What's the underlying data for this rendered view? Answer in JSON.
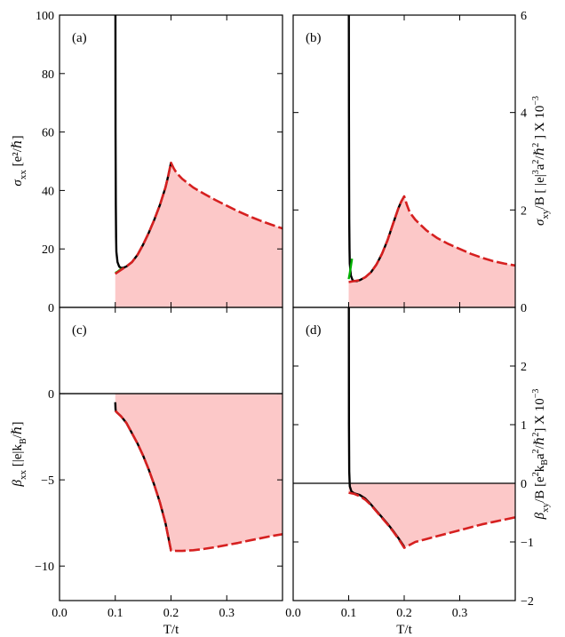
{
  "chart_data": [
    {
      "panel": "(a)",
      "type": "line",
      "ylabel": "σ_xx [e²/ℏ]",
      "ylabel_parts": {
        "sym": "σ",
        "sub": "xx",
        "unit": "[e²/ℏ]"
      },
      "xlim": [
        0.0,
        0.4
      ],
      "ylim": [
        0,
        100
      ],
      "yticks": [
        0,
        20,
        40,
        60,
        80,
        100
      ],
      "ytick_labels": [
        "0",
        "20",
        "40",
        "60",
        "80",
        "100"
      ],
      "series": [
        {
          "color": "#000000",
          "dash": false,
          "x": [
            0.1003,
            0.1005,
            0.101,
            0.1015,
            0.102,
            0.104,
            0.107,
            0.11,
            0.115,
            0.12,
            0.13,
            0.14,
            0.15,
            0.16,
            0.17,
            0.18,
            0.19,
            0.195,
            0.2
          ],
          "y": [
            100,
            60,
            35,
            24,
            19,
            15.5,
            14,
            13.5,
            13.6,
            14,
            15.5,
            18,
            21.5,
            25.5,
            30,
            35,
            41,
            45,
            49.5
          ]
        },
        {
          "color": "#00b000",
          "dash": false,
          "x": [
            0.1,
            0.104,
            0.108,
            0.112
          ],
          "y": [
            11.8,
            12.2,
            12.8,
            13.3
          ]
        },
        {
          "color": "#d62020",
          "dash": true,
          "x": [
            0.1,
            0.11,
            0.12,
            0.13,
            0.14,
            0.15,
            0.16,
            0.17,
            0.18,
            0.19,
            0.195,
            0.2,
            0.205,
            0.21,
            0.22,
            0.24,
            0.26,
            0.28,
            0.3,
            0.32,
            0.34,
            0.36,
            0.38,
            0.4
          ],
          "y": [
            11.5,
            12.8,
            14,
            15.5,
            18,
            21.5,
            25.5,
            30,
            35,
            41,
            45,
            49.5,
            47.5,
            46,
            44,
            41,
            38.8,
            36.7,
            34.8,
            32.9,
            31.2,
            29.7,
            28.3,
            27
          ]
        }
      ],
      "fill": {
        "color": "#fcc8c8",
        "from_x": 0.1,
        "follows": "red dashed curve"
      }
    },
    {
      "panel": "(b)",
      "type": "line",
      "ylabel": "σ_xy/B [ |e|³a²/ℏ² ]  X 10⁻³",
      "ylabel_parts": {
        "sym": "σ",
        "sub": "xy",
        "unit": "/B [ |e|",
        "sup1": "3",
        "mid1": "a",
        "sup2": "2",
        "mid2": "/ℏ",
        "sup3": "2",
        "tail": " ]  X 10",
        "sup4": "−3"
      },
      "ylabel_side": "right",
      "xlim": [
        0.0,
        0.4
      ],
      "ylim": [
        0,
        6
      ],
      "yticks": [
        0,
        2,
        4,
        6
      ],
      "ytick_labels": [
        "0",
        "2",
        "4",
        "6"
      ],
      "series": [
        {
          "color": "#000000",
          "dash": false,
          "x": [
            0.1003,
            0.1005,
            0.1008,
            0.101,
            0.1015,
            0.102,
            0.104,
            0.107,
            0.11,
            0.115,
            0.12,
            0.13,
            0.14,
            0.15,
            0.16,
            0.17,
            0.18,
            0.19,
            0.195,
            0.2
          ],
          "y": [
            6,
            4,
            2.5,
            1.8,
            1.2,
            0.9,
            0.65,
            0.56,
            0.54,
            0.54,
            0.56,
            0.62,
            0.72,
            0.88,
            1.1,
            1.38,
            1.72,
            2.05,
            2.18,
            2.28
          ]
        },
        {
          "color": "#00b000",
          "dash": false,
          "x": [
            0.1,
            0.102,
            0.104,
            0.106
          ],
          "y": [
            0.58,
            0.7,
            0.85,
            1.0
          ]
        },
        {
          "color": "#d62020",
          "dash": true,
          "x": [
            0.1,
            0.11,
            0.12,
            0.13,
            0.14,
            0.15,
            0.16,
            0.17,
            0.18,
            0.19,
            0.195,
            0.2,
            0.205,
            0.21,
            0.22,
            0.24,
            0.26,
            0.28,
            0.3,
            0.32,
            0.34,
            0.36,
            0.38,
            0.4
          ],
          "y": [
            0.52,
            0.54,
            0.56,
            0.62,
            0.72,
            0.88,
            1.1,
            1.38,
            1.72,
            2.05,
            2.18,
            2.28,
            2.1,
            1.95,
            1.8,
            1.58,
            1.42,
            1.3,
            1.2,
            1.1,
            1.02,
            0.95,
            0.9,
            0.86
          ]
        }
      ],
      "fill": {
        "color": "#fcc8c8",
        "from_x": 0.1,
        "follows": "red dashed curve"
      }
    },
    {
      "panel": "(c)",
      "type": "line",
      "ylabel": "β_xx [|e|k_B/ℏ]",
      "ylabel_parts": {
        "sym": "β",
        "sub": "xx",
        "unit1": "[|e|k",
        "sub2": "B",
        "unit2": "/ℏ]"
      },
      "xlim": [
        0.0,
        0.4
      ],
      "ylim": [
        -12,
        5
      ],
      "yticks": [
        -10,
        -5,
        0
      ],
      "ytick_labels": [
        "−10",
        "−5",
        "0"
      ],
      "xticks": [
        0.0,
        0.1,
        0.2,
        0.3
      ],
      "xtick_labels": [
        "0.0",
        "0.1",
        "0.2",
        "0.3"
      ],
      "xlabel": "T/t",
      "hline": 0,
      "series": [
        {
          "color": "#000000",
          "dash": false,
          "x": [
            0.1,
            0.1005,
            0.101,
            0.103,
            0.11,
            0.12,
            0.13,
            0.14,
            0.15,
            0.16,
            0.17,
            0.18,
            0.19,
            0.195,
            0.2
          ],
          "y": [
            -0.5,
            -0.9,
            -1.0,
            -1.1,
            -1.3,
            -1.7,
            -2.3,
            -2.9,
            -3.6,
            -4.4,
            -5.3,
            -6.3,
            -7.5,
            -8.3,
            -9.1
          ]
        },
        {
          "color": "#d62020",
          "dash": true,
          "x": [
            0.1,
            0.11,
            0.12,
            0.13,
            0.14,
            0.15,
            0.16,
            0.17,
            0.18,
            0.19,
            0.195,
            0.2,
            0.21,
            0.22,
            0.24,
            0.26,
            0.28,
            0.3,
            0.32,
            0.34,
            0.36,
            0.38,
            0.4
          ],
          "y": [
            -1.0,
            -1.3,
            -1.7,
            -2.3,
            -2.9,
            -3.6,
            -4.4,
            -5.3,
            -6.3,
            -7.5,
            -8.3,
            -9.1,
            -9.12,
            -9.12,
            -9.08,
            -9.0,
            -8.9,
            -8.78,
            -8.66,
            -8.52,
            -8.39,
            -8.26,
            -8.15
          ]
        }
      ],
      "fill": {
        "color": "#fcc8c8",
        "from_x": 0.1,
        "to_y": 0,
        "follows": "red dashed curve"
      }
    },
    {
      "panel": "(d)",
      "type": "line",
      "ylabel": "β_xy/B [e²k_Ba²/ℏ²] X 10⁻³",
      "ylabel_parts": {
        "sym": "β",
        "sub": "xy",
        "unit": "/B [e",
        "sup1": "2",
        "mid1": "k",
        "sub2": "B",
        "mid2": "a",
        "sup2": "2",
        "mid3": "/ℏ",
        "sup3": "2",
        "tail": "] X 10",
        "sup4": "−3"
      },
      "ylabel_side": "right",
      "xlim": [
        0.0,
        0.4
      ],
      "ylim": [
        -2,
        3
      ],
      "yticks": [
        -2,
        -1,
        0,
        1,
        2
      ],
      "ytick_labels": [
        "−2",
        "−1",
        "0",
        "1",
        "2"
      ],
      "xticks": [
        0.0,
        0.1,
        0.2,
        0.3
      ],
      "xtick_labels": [
        "0.0",
        "0.1",
        "0.2",
        "0.3"
      ],
      "xlabel": "T/t",
      "hline": 0,
      "series": [
        {
          "color": "#000000",
          "dash": false,
          "x": [
            0.1003,
            0.1005,
            0.101,
            0.102,
            0.105,
            0.11,
            0.12,
            0.13,
            0.14,
            0.15,
            0.16,
            0.17,
            0.18,
            0.19,
            0.2
          ],
          "y": [
            3,
            1.0,
            0.2,
            -0.05,
            -0.14,
            -0.17,
            -0.2,
            -0.26,
            -0.36,
            -0.47,
            -0.58,
            -0.69,
            -0.81,
            -0.94,
            -1.08
          ]
        },
        {
          "color": "#d62020",
          "dash": true,
          "x": [
            0.1,
            0.11,
            0.12,
            0.13,
            0.14,
            0.15,
            0.16,
            0.17,
            0.18,
            0.19,
            0.2,
            0.21,
            0.22,
            0.24,
            0.26,
            0.28,
            0.3,
            0.32,
            0.34,
            0.36,
            0.38,
            0.4
          ],
          "y": [
            -0.16,
            -0.18,
            -0.22,
            -0.28,
            -0.37,
            -0.48,
            -0.59,
            -0.7,
            -0.82,
            -0.95,
            -1.1,
            -1.05,
            -1.0,
            -0.95,
            -0.9,
            -0.85,
            -0.8,
            -0.75,
            -0.7,
            -0.66,
            -0.62,
            -0.58
          ]
        }
      ],
      "fill": {
        "color": "#fcc8c8",
        "from_x": 0.1,
        "to_y": 0,
        "follows": "red dashed curve"
      }
    }
  ]
}
